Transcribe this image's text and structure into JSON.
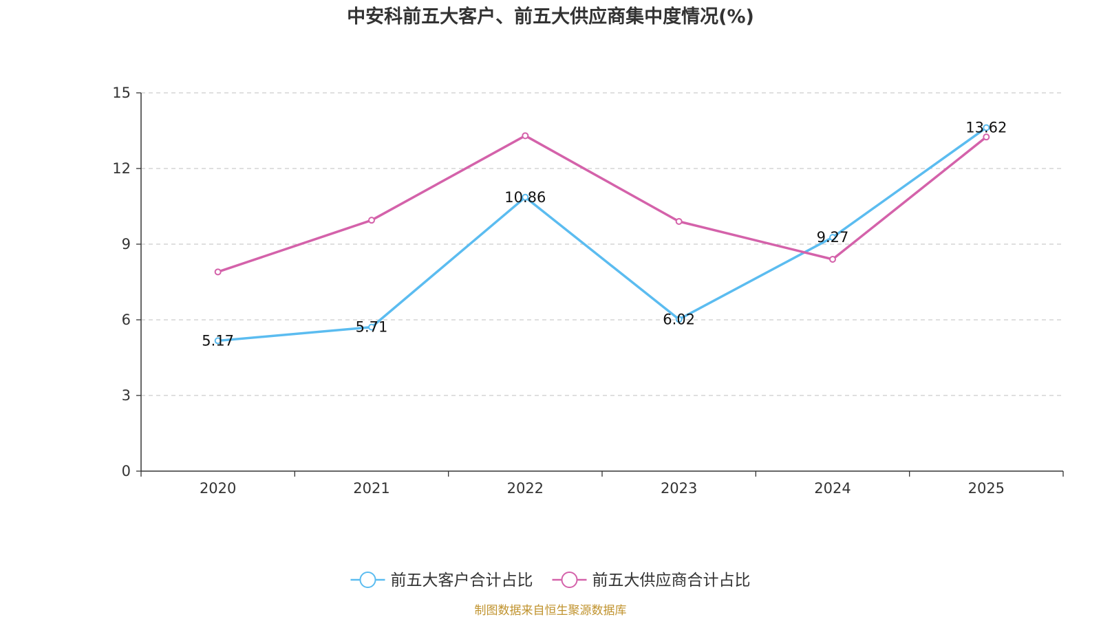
{
  "chart_data": {
    "type": "line",
    "title": "中安科前五大客户、前五大供应商集中度情况(%)",
    "categories": [
      "2020",
      "2021",
      "2022",
      "2023",
      "2024",
      "2025"
    ],
    "ylim": [
      0,
      15
    ],
    "yticks": [
      0,
      3,
      6,
      9,
      12,
      15
    ],
    "grid": true,
    "legend_position": "bottom-center",
    "series": [
      {
        "name": "前五大客户合计占比",
        "color": "#5bbcf0",
        "values": [
          5.17,
          5.71,
          10.86,
          6.02,
          9.27,
          13.62
        ],
        "labels": [
          "5.17",
          "5.71",
          "10.86",
          "6.02",
          "9.27",
          "13.62"
        ]
      },
      {
        "name": "前五大供应商合计占比",
        "color": "#d462aa",
        "values": [
          7.9,
          9.95,
          13.3,
          9.9,
          8.4,
          13.25
        ],
        "labels": []
      }
    ]
  },
  "source": "制图数据来自恒生聚源数据库"
}
